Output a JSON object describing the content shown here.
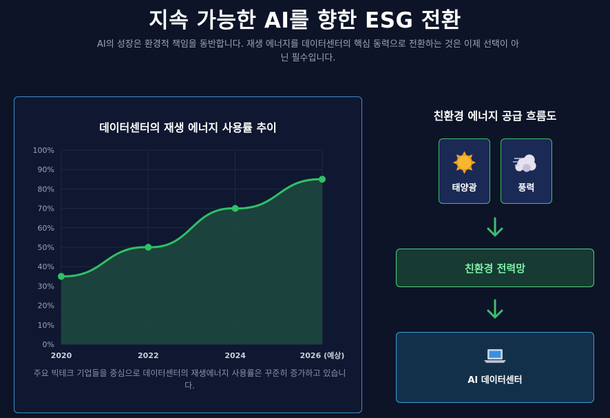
{
  "header": {
    "title": "지속 가능한 AI를 향한 ESG 전환",
    "subtitle": "AI의 성장은 환경적 책임을 동반합니다. 재생 에너지를 데이터센터의 핵심 동력으로 전환하는 것은 이제 선택이 아닌 필수입니다."
  },
  "chart_panel": {
    "caption": "주요 빅테크 기업들을 중심으로 데이터센터의 재생에너지 사용률은 꾸준히 증가하고 있습니다."
  },
  "chart_data": {
    "type": "area",
    "title": "데이터센터의 재생 에너지 사용률 추이",
    "x": [
      "2020",
      "2022",
      "2024",
      "2026 (예상)"
    ],
    "values": [
      35,
      50,
      70,
      85
    ],
    "y_unit": "%",
    "ylim": [
      0,
      100
    ],
    "y_ticks": [
      "0%",
      "10%",
      "20%",
      "30%",
      "40%",
      "50%",
      "60%",
      "70%",
      "80%",
      "90%",
      "100%"
    ],
    "grid": true,
    "legend": "none",
    "line_color": "#2fc165",
    "fill_color": "#1d4a3e"
  },
  "flow": {
    "title": "친환경 에너지 공급 흐름도",
    "sources": [
      {
        "label": "태양광",
        "icon": "sun-icon"
      },
      {
        "label": "풍력",
        "icon": "wind-icon"
      }
    ],
    "grid_label": "친환경 전력망",
    "datacenter": {
      "label": "AI 데이터센터",
      "icon": "laptop-icon"
    },
    "arrow_icon": "arrow-down-icon",
    "accent_color": "#3fbf6f"
  }
}
